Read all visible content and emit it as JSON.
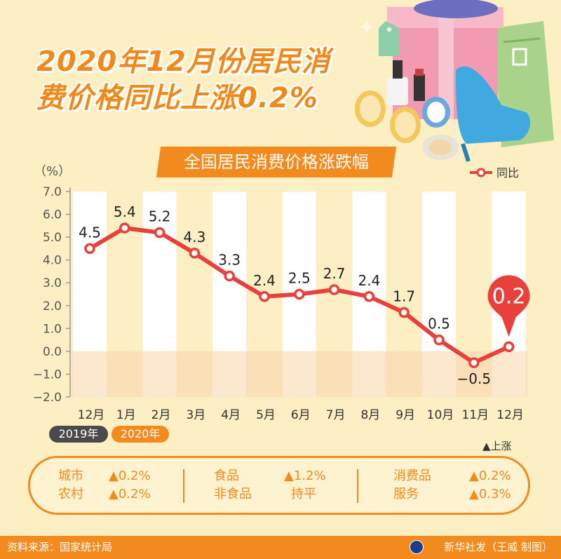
{
  "title_line1": "2020年12月份居民消",
  "title_line2": "费价格同比上涨0.2%",
  "chart_data": {
    "type": "line",
    "title": "全国居民消费价格涨跌幅",
    "unit_label": "（%）",
    "categories": [
      "12月",
      "1月",
      "2月",
      "3月",
      "4月",
      "5月",
      "6月",
      "7月",
      "8月",
      "9月",
      "10月",
      "11月",
      "12月"
    ],
    "series": [
      {
        "name": "同比",
        "values": [
          4.5,
          5.4,
          5.2,
          4.3,
          3.3,
          2.4,
          2.5,
          2.7,
          2.4,
          1.7,
          0.5,
          -0.5,
          0.2
        ]
      }
    ],
    "value_labels": [
      "4.5",
      "5.4",
      "5.2",
      "4.3",
      "3.3",
      "2.4",
      "2.5",
      "2.7",
      "2.4",
      "1.7",
      "0.5",
      "−0.5",
      "0.2"
    ],
    "yticks": [
      "7.0",
      "6.0",
      "5.0",
      "4.0",
      "3.0",
      "2.0",
      "1.0",
      "0.0",
      "−1.0",
      "−2.0"
    ],
    "ylim": [
      -2.0,
      7.0
    ],
    "legend_position": "top-right",
    "line_color": "#e8403a",
    "highlight_last": true
  },
  "years": {
    "y2019": "2019年",
    "y2020": "2020年"
  },
  "up_note": "▲上涨",
  "summary": {
    "c1": [
      {
        "label": "城市",
        "value": "▲0.2%"
      },
      {
        "label": "农村",
        "value": "▲0.2%"
      }
    ],
    "c2": [
      {
        "label": "食品",
        "value": "▲1.2%"
      },
      {
        "label": "非食品",
        "value": "持平"
      }
    ],
    "c3": [
      {
        "label": "消费品",
        "value": "▲0.2%"
      },
      {
        "label": "服务",
        "value": "▲0.3%"
      }
    ]
  },
  "footer": {
    "source": "资料来源：国家统计局",
    "credit": "新华社发（王威 制图）"
  },
  "colors": {
    "accent": "#f28a1e",
    "line": "#e8403a",
    "background": "#fbefc3"
  }
}
